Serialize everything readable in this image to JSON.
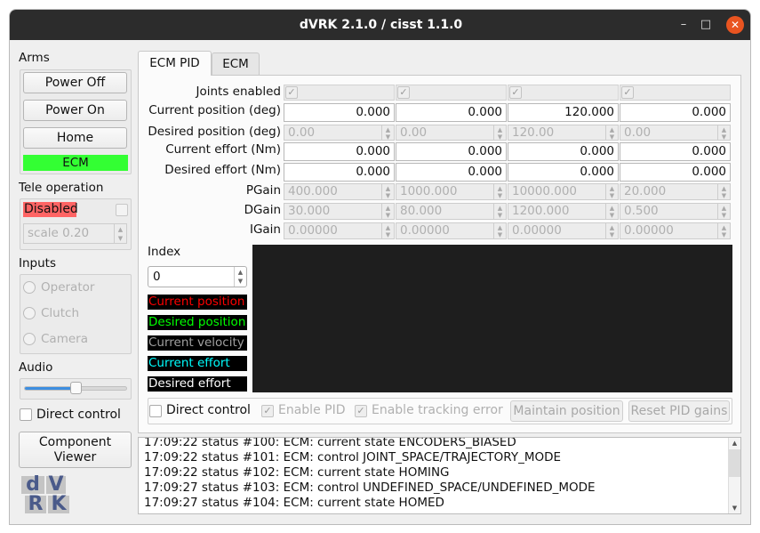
{
  "window": {
    "title": "dVRK 2.1.0 / cisst 1.1.0",
    "minimize": "–",
    "maximize": "□",
    "close": "✕"
  },
  "sidebar": {
    "arms_label": "Arms",
    "power_off": "Power Off",
    "power_on": "Power On",
    "home": "Home",
    "arm_status": "ECM",
    "arm_status_color": "#33ff33",
    "tele_label": "Tele operation",
    "tele_status": "Disabled",
    "tele_status_color": "#ff6464",
    "scale": "scale 0.20",
    "inputs_label": "Inputs",
    "inputs": [
      "Operator",
      "Clutch",
      "Camera"
    ],
    "audio_label": "Audio",
    "audio_volume": 0.5,
    "direct_control": "Direct control",
    "component_viewer_line1": "Component",
    "component_viewer_line2": "Viewer",
    "logo": "dVRK"
  },
  "tabs": [
    {
      "label": "ECM PID",
      "active": true
    },
    {
      "label": "ECM",
      "active": false
    }
  ],
  "pid": {
    "row_labels": [
      "Joints enabled",
      "Current position (deg)",
      "Desired position (deg)",
      "Current effort (Nm)",
      "Desired effort (Nm)",
      "PGain",
      "DGain",
      "IGain"
    ],
    "joints_enabled": [
      true,
      true,
      true,
      true
    ],
    "current_position": [
      "0.000",
      "0.000",
      "120.000",
      "0.000"
    ],
    "desired_position": [
      "0.00",
      "0.00",
      "120.00",
      "0.00"
    ],
    "current_effort": [
      "0.000",
      "0.000",
      "0.000",
      "0.000"
    ],
    "desired_effort": [
      "0.000",
      "0.000",
      "0.000",
      "0.000"
    ],
    "pgain": [
      "400.000",
      "1000.000",
      "10000.000",
      "20.000"
    ],
    "dgain": [
      "30.000",
      "80.000",
      "1200.000",
      "0.500"
    ],
    "igain": [
      "0.00000",
      "0.00000",
      "0.00000",
      "0.00000"
    ],
    "index_label": "Index",
    "index_value": "0",
    "legend": [
      {
        "label": "Current position",
        "color": "#ff0000"
      },
      {
        "label": "Desired position",
        "color": "#00ff00"
      },
      {
        "label": "Current velocity",
        "color": "#a0a0a0"
      },
      {
        "label": "Current effort",
        "color": "#00ffff"
      },
      {
        "label": "Desired effort",
        "color": "#ffffff"
      }
    ],
    "direct_control": "Direct control",
    "enable_pid": "Enable PID",
    "enable_tracking_error": "Enable tracking error",
    "maintain_position": "Maintain position",
    "reset_pid_gains": "Reset PID gains"
  },
  "log": [
    "17:09:22 status #100: ECM: current state ENCODERS_BIASED",
    "17:09:22 status #101: ECM: control JOINT_SPACE/TRAJECTORY_MODE",
    "17:09:22 status #102: ECM: current state HOMING",
    "17:09:27 status #103: ECM: control UNDEFINED_SPACE/UNDEFINED_MODE",
    "17:09:27 status #104: ECM: current state HOMED"
  ]
}
